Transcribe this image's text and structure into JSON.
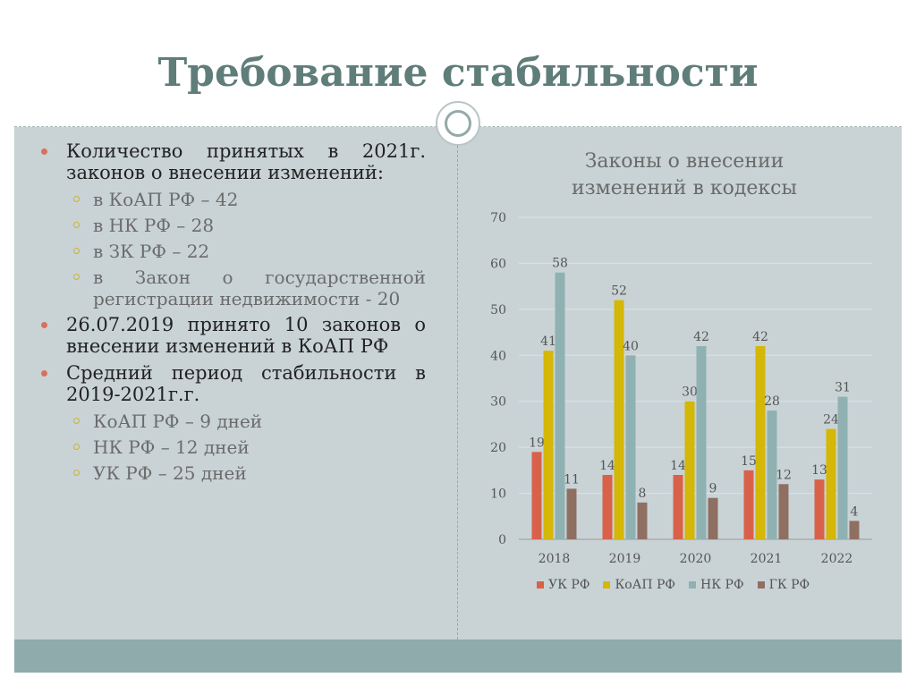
{
  "slide": {
    "title": "Требование стабильности"
  },
  "bullets": [
    {
      "text": "Количество принятых в 2021г. законов о внесении изменений:",
      "sub": [
        "в КоАП РФ – 42",
        "в НК РФ – 28",
        "в ЗК РФ – 22",
        "в Закон о государственной регистрации недвижимости - 20"
      ]
    },
    {
      "text": "26.07.2019 принято 10 законов о внесении изменений в КоАП РФ",
      "sub": []
    },
    {
      "text": "Средний период стабильности в 2019-2021г.г.",
      "sub": [
        "КоАП РФ – 9 дней",
        "НК РФ – 12 дней",
        "УК РФ – 25 дней"
      ]
    }
  ],
  "chart_data": {
    "type": "bar",
    "title": "Законы о внесении изменений в кодексы",
    "categories": [
      "2018",
      "2019",
      "2020",
      "2021",
      "2022"
    ],
    "series": [
      {
        "name": "УК РФ",
        "values": [
          19,
          14,
          14,
          15,
          13
        ],
        "color": "#d9614a"
      },
      {
        "name": "КоАП РФ",
        "values": [
          41,
          52,
          30,
          42,
          24
        ],
        "color": "#d4b707"
      },
      {
        "name": "НК РФ",
        "values": [
          58,
          40,
          42,
          28,
          31
        ],
        "color": "#8fb1b1"
      },
      {
        "name": "ГК РФ",
        "values": [
          11,
          8,
          9,
          12,
          4
        ],
        "color": "#8f6f62"
      }
    ],
    "y_ticks": [
      "0",
      "10",
      "20",
      "30",
      "40",
      "50",
      "60",
      "70"
    ],
    "ylim": [
      0,
      70
    ],
    "grid": true,
    "legend_position": "bottom"
  }
}
